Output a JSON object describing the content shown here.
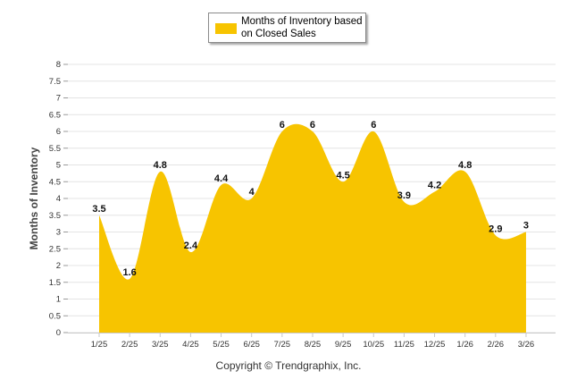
{
  "chart_data": {
    "type": "area",
    "categories": [
      "1/25",
      "2/25",
      "3/25",
      "4/25",
      "5/25",
      "6/25",
      "7/25",
      "8/25",
      "9/25",
      "10/25",
      "11/25",
      "12/25",
      "1/26",
      "2/26",
      "3/26"
    ],
    "series": [
      {
        "name": "Months of Inventory based on Closed Sales",
        "values": [
          3.5,
          1.6,
          4.8,
          2.4,
          4.4,
          4,
          6,
          6,
          4.5,
          6,
          3.9,
          4.2,
          4.8,
          2.9,
          3
        ]
      }
    ],
    "data_labels": [
      "3.5",
      "1.6",
      "4.8",
      "2.4",
      "4.4",
      "4",
      "6",
      "6",
      "4.5",
      "6",
      "3.9",
      "4.2",
      "4.8",
      "2.9",
      "3"
    ],
    "y_ticks": [
      "0",
      "0.5",
      "1",
      "1.5",
      "2",
      "2.5",
      "3",
      "3.5",
      "4",
      "4.5",
      "5",
      "5.5",
      "6",
      "6.5",
      "7",
      "7.5",
      "8"
    ],
    "ylim": [
      0,
      8
    ],
    "ylabel": "Months of Inventory",
    "xlabel": "",
    "grid": true,
    "legend_position": "top-center",
    "area_color": "#f7c400"
  },
  "footer": {
    "copyright": "Copyright © Trendgraphix, Inc."
  }
}
